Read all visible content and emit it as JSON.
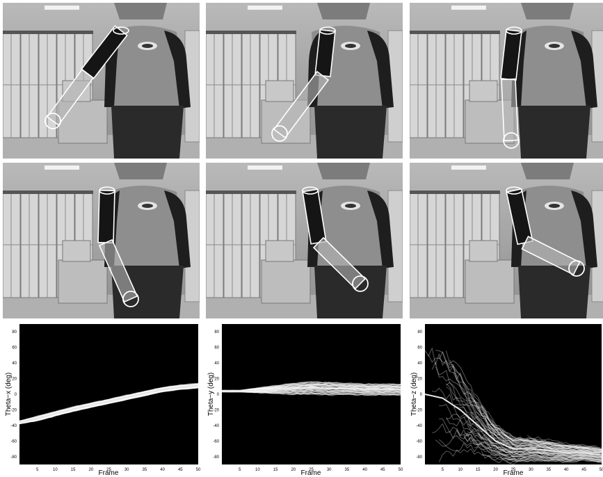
{
  "photos": [
    {
      "id": "frame-1"
    },
    {
      "id": "frame-2"
    },
    {
      "id": "frame-3"
    },
    {
      "id": "frame-4"
    },
    {
      "id": "frame-5"
    },
    {
      "id": "frame-6"
    }
  ],
  "chart_data": [
    {
      "type": "area",
      "xlabel": "Frame",
      "ylabel": "Theta−x (deg)",
      "xlim": [
        0,
        50
      ],
      "ylim": [
        -90,
        90
      ],
      "xticks": [
        5,
        10,
        15,
        20,
        25,
        30,
        35,
        40,
        45,
        50
      ],
      "yticks": [
        -80,
        -60,
        -40,
        -20,
        0,
        20,
        40,
        60,
        80
      ],
      "series": [
        {
          "x": [
            0,
            5,
            10,
            15,
            20,
            25,
            30,
            35,
            40,
            45,
            50
          ],
          "y": [
            -36,
            -31,
            -25,
            -19,
            -14,
            -9,
            -4,
            1,
            6,
            9,
            11
          ],
          "spread": [
            2,
            3,
            3,
            3,
            3,
            3,
            3,
            3,
            3,
            3,
            3
          ]
        }
      ]
    },
    {
      "type": "area",
      "xlabel": "Frame",
      "ylabel": "Theta−y (deg)",
      "xlim": [
        0,
        50
      ],
      "ylim": [
        -90,
        90
      ],
      "xticks": [
        5,
        10,
        15,
        20,
        25,
        30,
        35,
        40,
        45,
        50
      ],
      "yticks": [
        -80,
        -60,
        -40,
        -20,
        0,
        20,
        40,
        60,
        80
      ],
      "series": [
        {
          "x": [
            0,
            5,
            10,
            15,
            20,
            25,
            30,
            35,
            40,
            45,
            50
          ],
          "y": [
            4,
            4,
            5,
            6,
            7,
            8,
            7,
            7,
            6,
            6,
            6
          ],
          "spread": [
            1,
            1,
            3,
            5,
            7,
            8,
            8,
            7,
            7,
            7,
            7
          ]
        }
      ]
    },
    {
      "type": "area",
      "xlabel": "Frame",
      "ylabel": "Theta−z (deg)",
      "xlim": [
        0,
        50
      ],
      "ylim": [
        -90,
        90
      ],
      "xticks": [
        5,
        10,
        15,
        20,
        25,
        30,
        35,
        40,
        45,
        50
      ],
      "yticks": [
        -80,
        -60,
        -40,
        -20,
        0,
        20,
        40,
        60,
        80
      ],
      "series": [
        {
          "x": [
            0,
            5,
            10,
            15,
            20,
            25,
            30,
            35,
            40,
            45,
            50
          ],
          "y": [
            0,
            -5,
            -20,
            -40,
            -60,
            -70,
            -70,
            -72,
            -75,
            -75,
            -78
          ],
          "spread": [
            85,
            80,
            60,
            40,
            25,
            18,
            15,
            14,
            12,
            10,
            10
          ]
        }
      ]
    }
  ]
}
